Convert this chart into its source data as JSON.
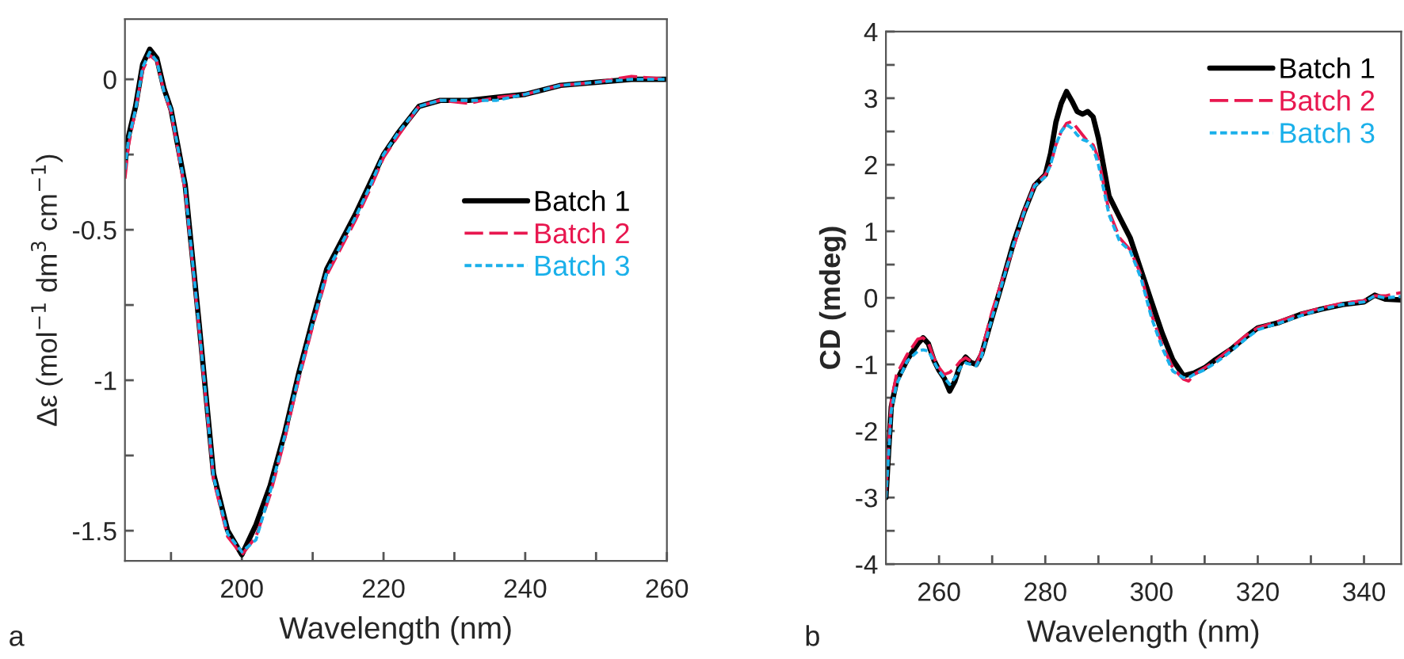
{
  "chart_data": [
    {
      "type": "line",
      "xlabel": "Wavelength (nm)",
      "ylabel": "Δε (mol$^{−1}$ dm$^{3}$ cm$^{−1}$)",
      "annotations": [
        "a"
      ],
      "legend": "right",
      "grid": false,
      "xlim": [
        183.5,
        260
      ],
      "ylim": [
        -1.6,
        0.2
      ],
      "xticks": [
        {
          "value": 190,
          "label": null
        },
        200,
        {
          "value": 210,
          "label": null
        },
        220,
        {
          "value": 230,
          "label": null
        },
        240,
        {
          "value": 250,
          "label": null
        },
        260
      ],
      "yticks": [
        -1.5,
        {
          "value": -1.25,
          "label": null
        },
        -1,
        {
          "value": -0.75,
          "label": null
        },
        -0.5,
        {
          "value": -0.25,
          "label": null
        },
        0
      ],
      "x": [
        183.5,
        184,
        185,
        186,
        187,
        188,
        189,
        190,
        192,
        194,
        196,
        198,
        200,
        202,
        204,
        206,
        208,
        210,
        212,
        214,
        216,
        218,
        220,
        222,
        225,
        228,
        232,
        236,
        240,
        245,
        250,
        255,
        260
      ],
      "series": [
        {
          "name": "Batch 1",
          "color": "#000000",
          "line_style": "solid",
          "values": [
            -0.28,
            -0.19,
            -0.09,
            0.05,
            0.1,
            0.07,
            -0.03,
            -0.1,
            -0.35,
            -0.82,
            -1.31,
            -1.5,
            -1.58,
            -1.48,
            -1.35,
            -1.18,
            -0.98,
            -0.8,
            -0.63,
            -0.54,
            -0.45,
            -0.35,
            -0.25,
            -0.18,
            -0.09,
            -0.07,
            -0.07,
            -0.06,
            -0.05,
            -0.02,
            -0.01,
            0.0,
            0.0
          ]
        },
        {
          "name": "Batch 2",
          "color": "#e8174f",
          "line_style": "dashed",
          "values": [
            -0.33,
            -0.22,
            -0.1,
            0.03,
            0.08,
            0.06,
            -0.04,
            -0.11,
            -0.37,
            -0.84,
            -1.33,
            -1.52,
            -1.58,
            -1.52,
            -1.38,
            -1.2,
            -1.0,
            -0.82,
            -0.65,
            -0.56,
            -0.47,
            -0.37,
            -0.26,
            -0.19,
            -0.09,
            -0.07,
            -0.08,
            -0.06,
            -0.05,
            -0.02,
            -0.01,
            0.01,
            0.0
          ]
        },
        {
          "name": "Batch 3",
          "color": "#1ab0ea",
          "line_style": "dotted",
          "values": [
            -0.3,
            -0.2,
            -0.1,
            0.04,
            0.09,
            0.06,
            -0.04,
            -0.1,
            -0.36,
            -0.83,
            -1.32,
            -1.51,
            -1.57,
            -1.53,
            -1.37,
            -1.19,
            -0.99,
            -0.81,
            -0.64,
            -0.55,
            -0.46,
            -0.36,
            -0.25,
            -0.18,
            -0.09,
            -0.07,
            -0.07,
            -0.07,
            -0.05,
            -0.02,
            -0.01,
            0.0,
            0.0
          ]
        }
      ]
    },
    {
      "type": "line",
      "xlabel": "Wavelength (nm)",
      "ylabel": "CD (mdeg)",
      "annotations": [
        "b"
      ],
      "legend": "top right",
      "grid": false,
      "xlim": [
        250,
        347
      ],
      "ylim": [
        -4,
        4
      ],
      "xticks": [
        260,
        {
          "value": 270,
          "label": null
        },
        280,
        {
          "value": 290,
          "label": null
        },
        300,
        {
          "value": 310,
          "label": null
        },
        320,
        {
          "value": 330,
          "label": null
        },
        340
      ],
      "yticks": [
        -4,
        {
          "value": -3.5,
          "label": null
        },
        -3,
        {
          "value": -2.5,
          "label": null
        },
        -2,
        {
          "value": -1.5,
          "label": null
        },
        -1,
        {
          "value": -0.5,
          "label": null
        },
        0,
        {
          "value": 0.5,
          "label": null
        },
        1,
        {
          "value": 1.5,
          "label": null
        },
        2,
        {
          "value": 2.5,
          "label": null
        },
        3,
        {
          "value": 3.5,
          "label": null
        },
        4
      ],
      "x": [
        250,
        251,
        252,
        254,
        256,
        257,
        258,
        259,
        260,
        261,
        262,
        263,
        264,
        265,
        266,
        267,
        268,
        270,
        272,
        274,
        276,
        278,
        280,
        281,
        282,
        283,
        284,
        285,
        286,
        287,
        288,
        289,
        290,
        292,
        294,
        296,
        298,
        300,
        302,
        304,
        306,
        307,
        308,
        310,
        312,
        315,
        318,
        320,
        324,
        328,
        332,
        336,
        340,
        342,
        344,
        347
      ],
      "series": [
        {
          "name": "Batch 1",
          "color": "#000000",
          "line_style": "solid",
          "values": [
            -3.0,
            -1.64,
            -1.25,
            -0.93,
            -0.69,
            -0.6,
            -0.69,
            -0.93,
            -1.09,
            -1.21,
            -1.4,
            -1.25,
            -1.0,
            -0.89,
            -0.97,
            -1.0,
            -0.85,
            -0.29,
            0.26,
            0.82,
            1.29,
            1.69,
            1.85,
            2.17,
            2.64,
            2.92,
            3.1,
            2.96,
            2.8,
            2.76,
            2.8,
            2.72,
            2.4,
            1.53,
            1.21,
            0.9,
            0.42,
            -0.06,
            -0.53,
            -0.93,
            -1.17,
            -1.15,
            -1.13,
            -1.05,
            -0.93,
            -0.77,
            -0.57,
            -0.45,
            -0.37,
            -0.25,
            -0.17,
            -0.1,
            -0.06,
            0.04,
            -0.02,
            -0.03
          ]
        },
        {
          "name": "Batch 2",
          "color": "#e8174f",
          "line_style": "dashed",
          "values": [
            -2.9,
            -1.55,
            -1.15,
            -0.85,
            -0.62,
            -0.6,
            -0.68,
            -0.9,
            -1.05,
            -1.15,
            -1.12,
            -1.05,
            -0.95,
            -0.9,
            -0.95,
            -1.0,
            -0.8,
            -0.2,
            0.3,
            0.75,
            1.3,
            1.7,
            1.85,
            2.0,
            2.3,
            2.5,
            2.62,
            2.65,
            2.55,
            2.45,
            2.35,
            2.3,
            2.1,
            1.3,
            0.9,
            0.72,
            0.35,
            -0.25,
            -0.7,
            -1.05,
            -1.22,
            -1.25,
            -1.15,
            -1.05,
            -0.95,
            -0.75,
            -0.55,
            -0.45,
            -0.35,
            -0.24,
            -0.15,
            -0.08,
            -0.04,
            0.03,
            0.03,
            0.08
          ]
        },
        {
          "name": "Batch 3",
          "color": "#1ab0ea",
          "line_style": "dotted",
          "values": [
            -3.0,
            -1.7,
            -1.3,
            -0.95,
            -0.8,
            -0.78,
            -0.8,
            -0.95,
            -1.1,
            -1.2,
            -1.3,
            -1.2,
            -1.05,
            -0.98,
            -1.0,
            -1.02,
            -0.88,
            -0.3,
            0.25,
            0.8,
            1.28,
            1.68,
            1.82,
            2.0,
            2.3,
            2.5,
            2.6,
            2.55,
            2.45,
            2.38,
            2.35,
            2.25,
            2.0,
            1.25,
            0.85,
            0.7,
            0.3,
            -0.3,
            -0.75,
            -1.1,
            -1.2,
            -1.2,
            -1.15,
            -1.08,
            -0.98,
            -0.8,
            -0.6,
            -0.48,
            -0.38,
            -0.27,
            -0.17,
            -0.1,
            -0.06,
            0.03,
            0.0,
            0.02
          ]
        }
      ]
    }
  ]
}
